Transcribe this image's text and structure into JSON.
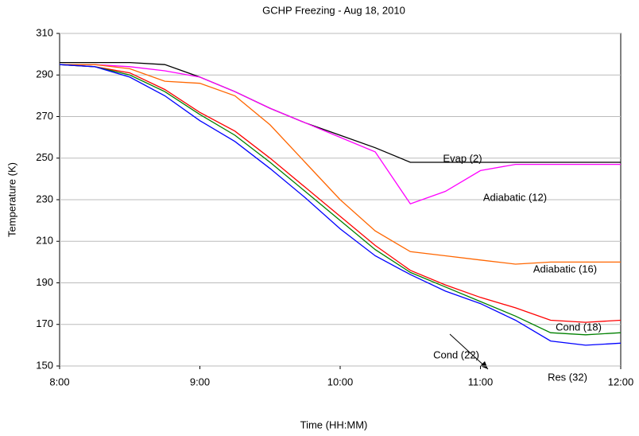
{
  "chart_data": {
    "type": "line",
    "title": "GCHP Freezing - Aug 18, 2010",
    "x_label": "Time (HH:MM)",
    "y_label": "Temperature (K)",
    "x": [
      8,
      8.25,
      8.5,
      8.75,
      9,
      9.25,
      9.5,
      9.75,
      10,
      10.25,
      10.5,
      10.75,
      11,
      11.25,
      11.5,
      11.75,
      12
    ],
    "series": [
      {
        "name": "Evap (2)",
        "color": "#000000",
        "values": [
          296,
          296,
          296,
          295,
          289,
          282,
          274,
          267,
          261,
          255,
          248,
          248,
          248,
          248,
          248,
          248,
          248
        ]
      },
      {
        "name": "Adiabatic (12)",
        "color": "#ff00ff",
        "values": [
          295,
          295,
          294,
          292,
          289,
          282,
          274,
          267,
          260,
          253,
          228,
          234,
          244,
          247,
          247,
          247,
          247
        ]
      },
      {
        "name": "Adiabatic (16)",
        "color": "#ff6600",
        "values": [
          295,
          295,
          293,
          287,
          286,
          280,
          266,
          248,
          230,
          215,
          205,
          203,
          201,
          199,
          200,
          200,
          200
        ]
      },
      {
        "name": "Cond (18)",
        "color": "#ff0000",
        "values": [
          295,
          294,
          291,
          283,
          272,
          263,
          250,
          236,
          222,
          208,
          196,
          189,
          183,
          178,
          172,
          171,
          172
        ]
      },
      {
        "name": "Cond (22)",
        "color": "#008000",
        "values": [
          295,
          294,
          290,
          282,
          271,
          261,
          248,
          234,
          220,
          206,
          195,
          188,
          181,
          174,
          166,
          165,
          166
        ]
      },
      {
        "name": "Res (32)",
        "color": "#0000ff",
        "values": [
          295,
          294,
          289,
          280,
          268,
          258,
          245,
          231,
          216,
          203,
          194,
          186,
          180,
          172,
          162,
          160,
          161
        ]
      }
    ],
    "xlim": [
      8,
      12
    ],
    "xticks": [
      {
        "value": 8,
        "label": "8:00"
      },
      {
        "value": 9,
        "label": "9:00"
      },
      {
        "value": 10,
        "label": "10:00"
      },
      {
        "value": 11,
        "label": "11:00"
      },
      {
        "value": 12,
        "label": "12:00"
      }
    ],
    "ylim": [
      150,
      310
    ],
    "yticks": [
      150,
      170,
      190,
      210,
      230,
      250,
      270,
      290,
      310
    ],
    "grid": true
  }
}
